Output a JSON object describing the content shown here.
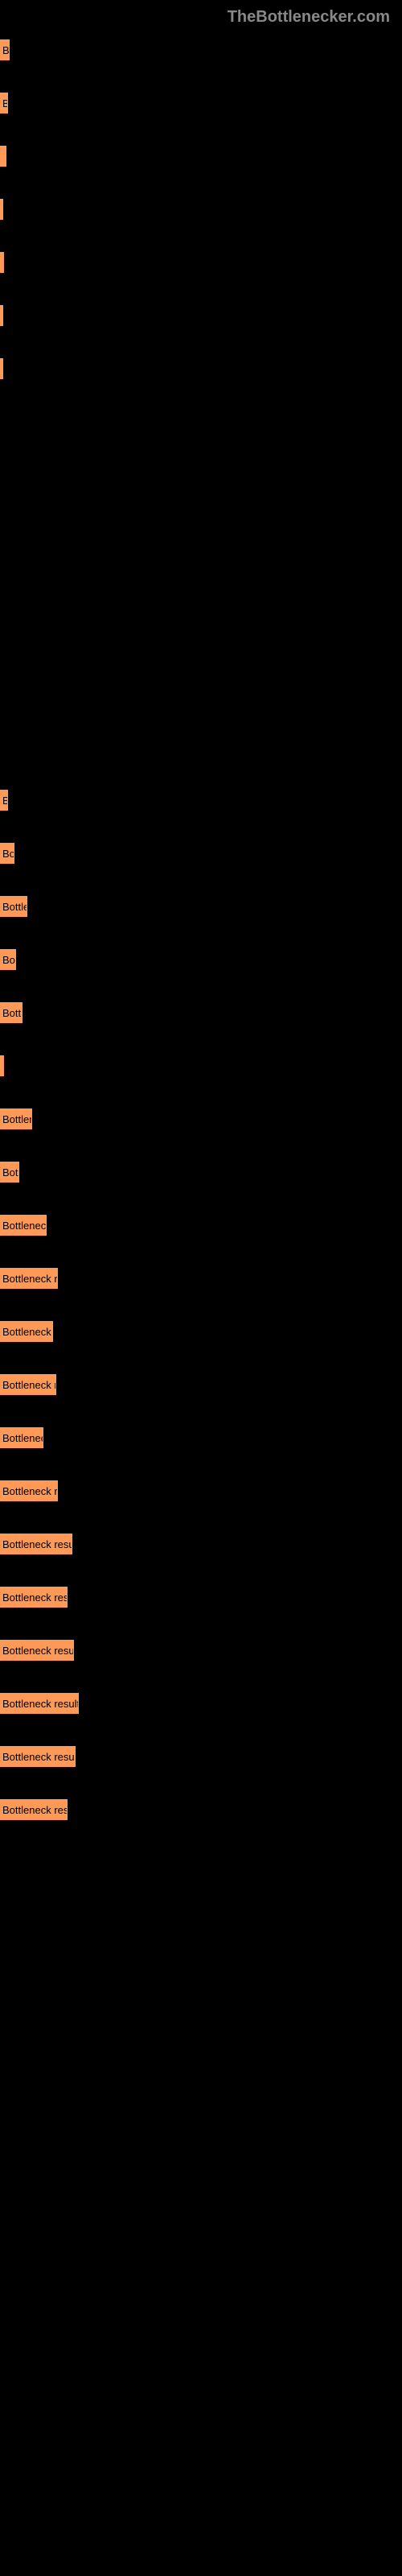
{
  "header": "TheBottlenecker.com",
  "bars_top": [
    {
      "width": 12,
      "label": "B"
    },
    {
      "width": 10,
      "label": "B"
    },
    {
      "width": 8,
      "label": ""
    },
    {
      "width": 4,
      "label": ""
    },
    {
      "width": 5,
      "label": ""
    },
    {
      "width": 3,
      "label": ""
    },
    {
      "width": 3,
      "label": ""
    }
  ],
  "bars_bottom": [
    {
      "width": 10,
      "label": "B"
    },
    {
      "width": 18,
      "label": "Bo"
    },
    {
      "width": 34,
      "label": "Bottle"
    },
    {
      "width": 20,
      "label": "Bo"
    },
    {
      "width": 28,
      "label": "Bottl"
    },
    {
      "width": 5,
      "label": ""
    },
    {
      "width": 40,
      "label": "Bottlen"
    },
    {
      "width": 24,
      "label": "Bot"
    },
    {
      "width": 58,
      "label": "Bottleneck"
    },
    {
      "width": 72,
      "label": "Bottleneck re"
    },
    {
      "width": 66,
      "label": "Bottleneck res"
    },
    {
      "width": 70,
      "label": "Bottleneck re"
    },
    {
      "width": 54,
      "label": "Bottleneck"
    },
    {
      "width": 72,
      "label": "Bottleneck res"
    },
    {
      "width": 90,
      "label": "Bottleneck result"
    },
    {
      "width": 84,
      "label": "Bottleneck resu"
    },
    {
      "width": 92,
      "label": "Bottleneck result"
    },
    {
      "width": 98,
      "label": "Bottleneck result"
    },
    {
      "width": 94,
      "label": "Bottleneck result"
    },
    {
      "width": 84,
      "label": "Bottleneck resu"
    }
  ],
  "colors": {
    "background": "#000000",
    "bar": "#ff9955",
    "header_text": "#888888",
    "bar_text": "#000000"
  }
}
